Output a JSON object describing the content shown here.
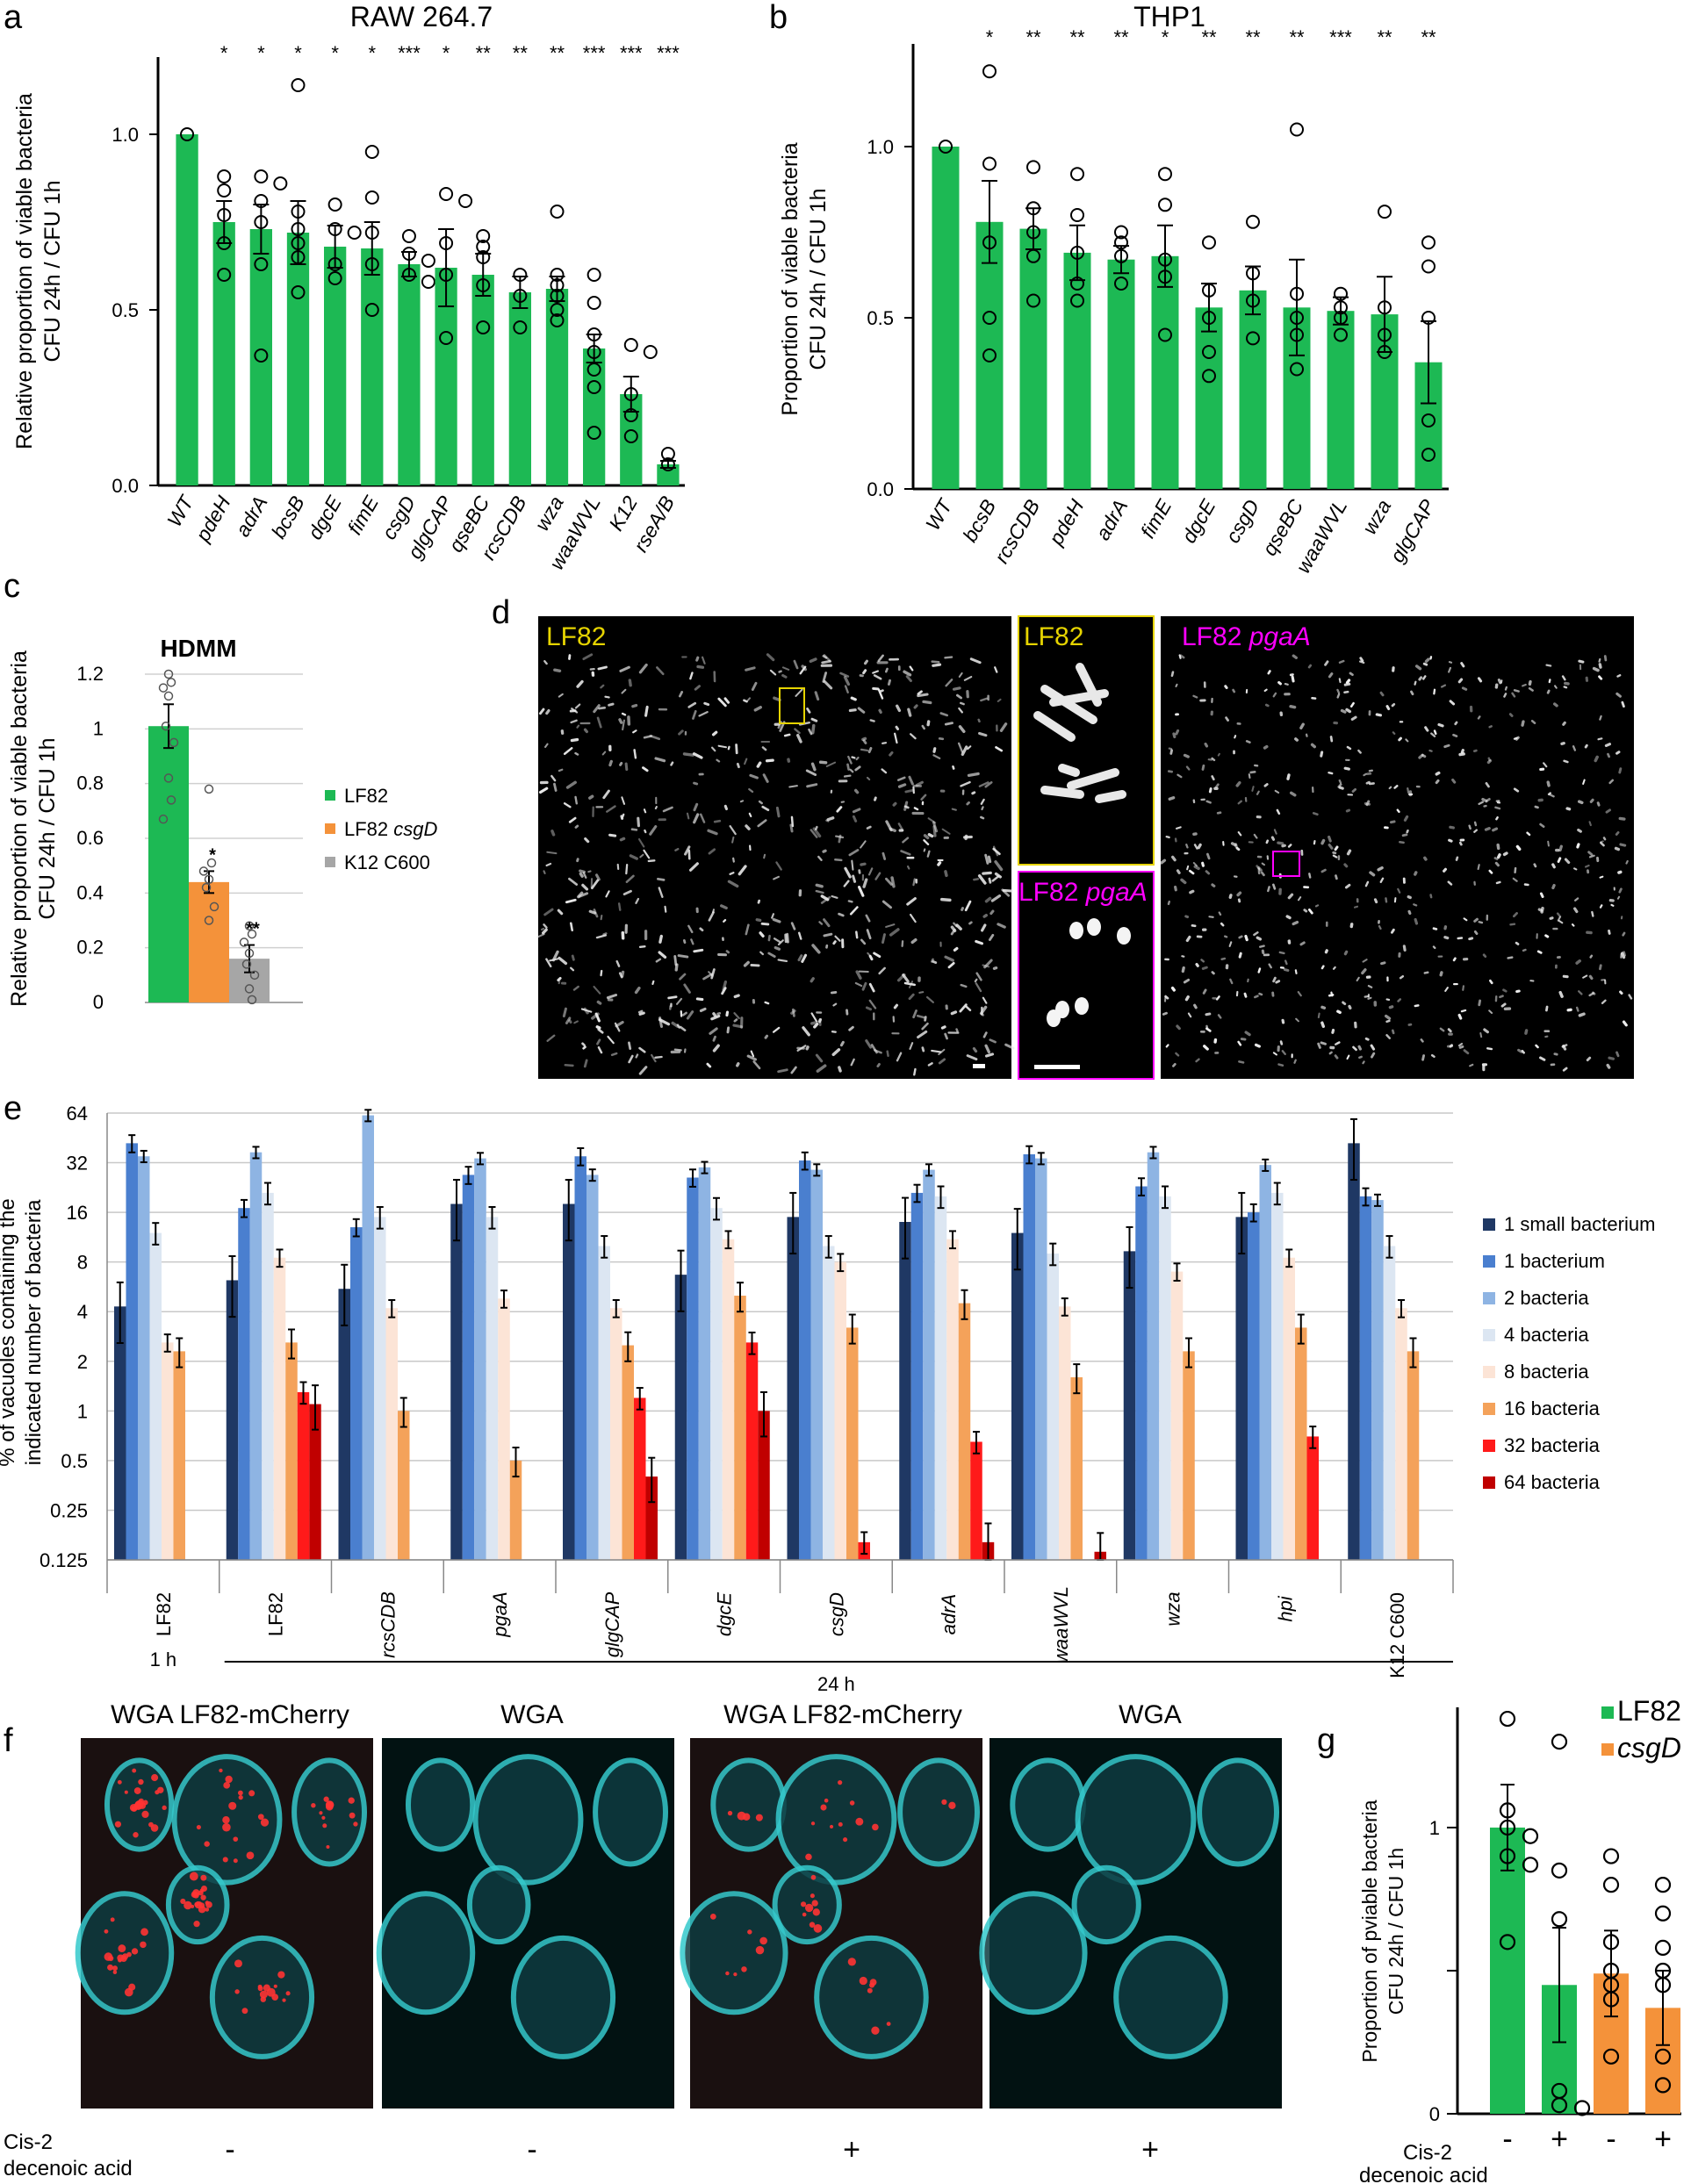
{
  "colors": {
    "green": "#1db954",
    "orange": "#f4923a",
    "gray": "#a6a6a6",
    "yellow": "#e6d400",
    "magenta": "#ff00ff",
    "cyan": "#35c9cc",
    "mcherry": "#ff3333"
  },
  "panel_letters": {
    "a": "a",
    "b": "b",
    "c": "c",
    "d": "d",
    "e": "e",
    "f": "f",
    "g": "g"
  },
  "chart_data": [
    {
      "panel": "a",
      "type": "bar",
      "title": "RAW 264.7",
      "ylabel_lines": [
        "Relative proportion of viable bacteria",
        "CFU 24h / CFU 1h"
      ],
      "yticks": [
        "0.0",
        "0.5",
        "1.0"
      ],
      "ylim": [
        0,
        1.22
      ],
      "categories": [
        "WT",
        "pdeH",
        "adrA",
        "bcsB",
        "dgcE",
        "fimE",
        "csgD",
        "glgCAP",
        "qseBC",
        "rcsCDB",
        "wza",
        "waaWVL",
        "K12",
        "rseA/B"
      ],
      "values": [
        1.0,
        0.75,
        0.73,
        0.72,
        0.68,
        0.675,
        0.63,
        0.62,
        0.6,
        0.55,
        0.56,
        0.39,
        0.26,
        0.06
      ],
      "errors": [
        0,
        0.06,
        0.07,
        0.09,
        0.06,
        0.075,
        0.035,
        0.11,
        0.06,
        0.045,
        0.035,
        0.04,
        0.05,
        0.01
      ],
      "points": [
        [
          1.0
        ],
        [
          0.88,
          0.84,
          0.77,
          0.69,
          0.6
        ],
        [
          0.88,
          0.86,
          0.81,
          0.75,
          0.63,
          0.37
        ],
        [
          1.14,
          0.78,
          0.73,
          0.69,
          0.65,
          0.55
        ],
        [
          0.8,
          0.73,
          0.72,
          0.63,
          0.59
        ],
        [
          0.95,
          0.82,
          0.72,
          0.63,
          0.5
        ],
        [
          0.71,
          0.66,
          0.64,
          0.6,
          0.58
        ],
        [
          0.83,
          0.81,
          0.69,
          0.6,
          0.42
        ],
        [
          0.71,
          0.68,
          0.65,
          0.57,
          0.45
        ],
        [
          0.6,
          0.54,
          0.45
        ],
        [
          0.78,
          0.6,
          0.57,
          0.54,
          0.5,
          0.47
        ],
        [
          0.6,
          0.52,
          0.43,
          0.38,
          0.33,
          0.28,
          0.15
        ],
        [
          0.4,
          0.38,
          0.26,
          0.2,
          0.14
        ],
        [
          0.09,
          0.06
        ]
      ],
      "significance": [
        "",
        "*",
        "*",
        "*",
        "*",
        "*",
        "***",
        "*",
        "**",
        "**",
        "**",
        "***",
        "***",
        "***"
      ]
    },
    {
      "panel": "b",
      "type": "bar",
      "title": "THP1",
      "ylabel_lines": [
        "Proportion of viable bacteria",
        "CFU 24h / CFU 1h"
      ],
      "yticks": [
        "0.0",
        "0.5",
        "1.0"
      ],
      "ylim": [
        0,
        1.3
      ],
      "categories": [
        "WT",
        "bcsB",
        "rcsCDB",
        "pdeH",
        "adrA",
        "fimE",
        "dgcE",
        "csgD",
        "qseBC",
        "waaWVL",
        "wza",
        "glgCAP"
      ],
      "values": [
        1.0,
        0.78,
        0.76,
        0.69,
        0.67,
        0.68,
        0.53,
        0.58,
        0.53,
        0.52,
        0.51,
        0.37
      ],
      "errors": [
        0,
        0.12,
        0.06,
        0.08,
        0.04,
        0.09,
        0.07,
        0.07,
        0.14,
        0.04,
        0.11,
        0.12
      ],
      "points": [
        [
          1.0
        ],
        [
          1.22,
          0.95,
          0.72,
          0.5,
          0.39
        ],
        [
          0.94,
          0.82,
          0.75,
          0.68,
          0.55
        ],
        [
          0.92,
          0.8,
          0.69,
          0.6,
          0.55
        ],
        [
          0.75,
          0.72,
          0.68,
          0.6
        ],
        [
          0.92,
          0.83,
          0.67,
          0.62,
          0.45
        ],
        [
          0.72,
          0.58,
          0.5,
          0.4,
          0.33
        ],
        [
          0.78,
          0.63,
          0.55,
          0.44
        ],
        [
          1.05,
          0.57,
          0.5,
          0.45,
          0.35
        ],
        [
          0.57,
          0.53,
          0.5,
          0.45
        ],
        [
          0.81,
          0.53,
          0.45,
          0.4
        ],
        [
          0.72,
          0.65,
          0.5,
          0.2,
          0.1
        ]
      ],
      "significance": [
        "",
        "*",
        "**",
        "**",
        "**",
        "*",
        "**",
        "**",
        "**",
        "***",
        "**",
        "**"
      ]
    },
    {
      "panel": "c",
      "type": "bar",
      "title": "HDMM",
      "ylabel_lines": [
        "Relative proportion of viable bacteria",
        "CFU 24h / CFU 1h"
      ],
      "yticks": [
        "0",
        "0.2",
        "0.4",
        "0.6",
        "0.8",
        "1",
        "1.2"
      ],
      "ylim": [
        0,
        1.2
      ],
      "categories": [
        "LF82",
        "LF82 csgD",
        "K12 C600"
      ],
      "legend": [
        "LF82",
        "LF82 csgD",
        "K12 C600"
      ],
      "values": [
        1.01,
        0.44,
        0.16
      ],
      "errors": [
        0.08,
        0.04,
        0.05
      ],
      "points": [
        [
          1.2,
          1.17,
          1.15,
          1.12,
          1.01,
          0.95,
          0.82,
          0.74,
          0.67
        ],
        [
          0.78,
          0.51,
          0.48,
          0.45,
          0.42,
          0.35,
          0.3
        ],
        [
          0.28,
          0.25,
          0.22,
          0.18,
          0.14,
          0.1,
          0.05,
          0.01
        ]
      ],
      "significance": [
        "",
        "*",
        "**"
      ]
    },
    {
      "panel": "e",
      "type": "bar",
      "scale": "log2",
      "ylabel_lines": [
        "% of vacuoles containing the",
        "indicated number of bacteria"
      ],
      "yticks": [
        "0.125",
        "0.25",
        "0.5",
        "1",
        "2",
        "4",
        "8",
        "16",
        "32",
        "64"
      ],
      "ylim": [
        0.125,
        64
      ],
      "groups": [
        "LF82",
        "LF82",
        "rcsCDB",
        "pgaA",
        "glgCAP",
        "dgcE",
        "csgD",
        "adrA",
        "waaWVL",
        "wza",
        "hpi",
        "K12 C600"
      ],
      "group_italic": [
        false,
        false,
        true,
        true,
        true,
        true,
        true,
        true,
        true,
        true,
        true,
        false
      ],
      "time_labels": [
        "1 h",
        "24 h"
      ],
      "series": [
        {
          "name": "1 small bacterium",
          "values": [
            4.3,
            6.2,
            5.5,
            18,
            18,
            6.7,
            15,
            14,
            12,
            9.3,
            15,
            42
          ]
        },
        {
          "name": "1 bacterium",
          "values": [
            42,
            17,
            13,
            27,
            35,
            26,
            33,
            21,
            36,
            23,
            16,
            20
          ]
        },
        {
          "name": "2 bacteria",
          "values": [
            35,
            37,
            62,
            34,
            27,
            30,
            29,
            29,
            34,
            37,
            31,
            19
          ]
        },
        {
          "name": "4 bacteria",
          "values": [
            12,
            21,
            15,
            15,
            10,
            17,
            10,
            20,
            9,
            20,
            21,
            10
          ]
        },
        {
          "name": "8 bacteria",
          "values": [
            2.6,
            8.5,
            4.2,
            4.8,
            4.2,
            11,
            8,
            11,
            4.3,
            7,
            8.5,
            4.2
          ]
        },
        {
          "name": "16 bacteria",
          "values": [
            2.3,
            2.6,
            1.0,
            0.5,
            2.5,
            5,
            3.2,
            4.5,
            1.6,
            2.3,
            3.2,
            2.3
          ]
        },
        {
          "name": "32 bacteria",
          "values": [
            null,
            1.3,
            null,
            null,
            1.2,
            2.6,
            0.16,
            0.65,
            null,
            null,
            0.7,
            null
          ]
        },
        {
          "name": "64 bacteria",
          "values": [
            null,
            1.1,
            null,
            null,
            0.4,
            1.0,
            null,
            0.16,
            0.14,
            null,
            null,
            null
          ]
        }
      ]
    },
    {
      "panel": "g",
      "type": "bar",
      "ylabel_lines": [
        "Proportion of pviable bacteria",
        "CFU 24h / CFU 1h"
      ],
      "yticks": [
        "0",
        "1"
      ],
      "ylim": [
        0,
        1.42
      ],
      "legend": [
        "LF82",
        "csgD"
      ],
      "categories": [
        "-",
        "+",
        "-",
        "+"
      ],
      "x_title_lines": [
        "Cis-2",
        "decenoic acid"
      ],
      "values": [
        1.0,
        0.45,
        0.49,
        0.37
      ],
      "errors": [
        0.15,
        0.2,
        0.15,
        0.13
      ],
      "points": [
        [
          1.38,
          1.06,
          1.0,
          0.97,
          0.9,
          0.87,
          0.6
        ],
        [
          1.3,
          0.85,
          0.68,
          0.08,
          0.03,
          0.02
        ],
        [
          0.9,
          0.8,
          0.6,
          0.5,
          0.45,
          0.4,
          0.2
        ],
        [
          0.8,
          0.7,
          0.58,
          0.5,
          0.45,
          0.2,
          0.1
        ]
      ]
    }
  ],
  "micro_d": {
    "left_label": "LF82",
    "inset_top_label": "LF82",
    "inset_bottom_label_a": "LF82",
    "inset_bottom_label_b": "pgaA",
    "right_label_a": "LF82",
    "right_label_b": "pgaA"
  },
  "micro_f": {
    "titles": [
      "WGA LF82-mCherry",
      "WGA",
      "WGA LF82-mCherry",
      "WGA"
    ],
    "treatment_title_lines": [
      "Cis-2",
      "decenoic acid"
    ],
    "treatment_signs": [
      "-",
      "-",
      "+",
      "+"
    ]
  }
}
